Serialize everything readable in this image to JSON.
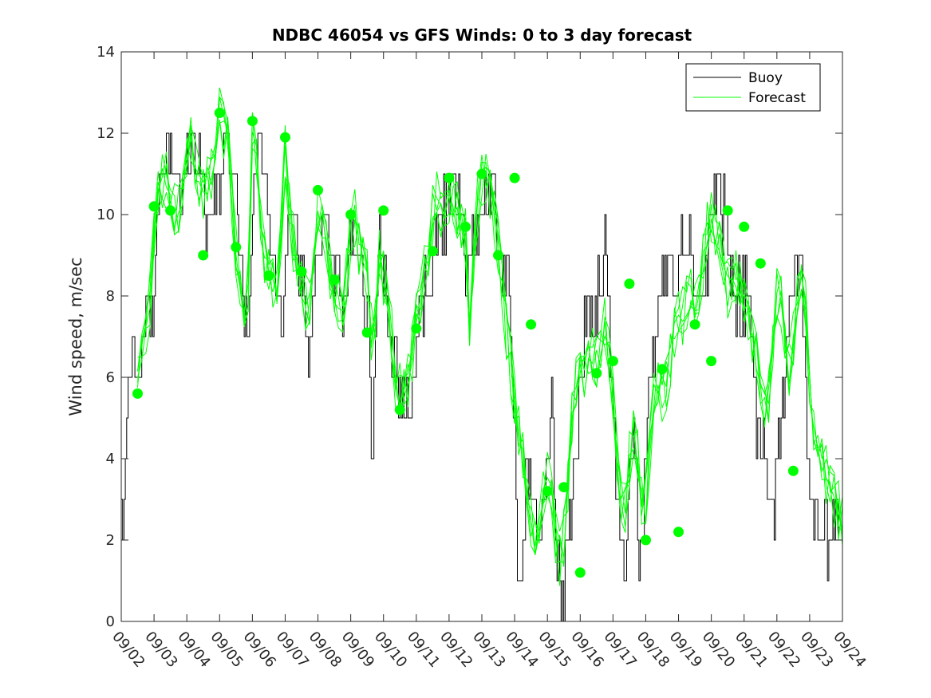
{
  "chart_data": {
    "type": "line",
    "title": "NDBC 46054 vs GFS Winds: 0 to 3 day forecast",
    "xlabel": "",
    "ylabel": "Wind speed, m/sec",
    "xlim": [
      0,
      22
    ],
    "ylim": [
      0,
      14
    ],
    "yticks": [
      0,
      2,
      4,
      6,
      8,
      10,
      12,
      14
    ],
    "xtick_labels": [
      "09/02",
      "09/03",
      "09/04",
      "09/05",
      "09/06",
      "09/07",
      "09/08",
      "09/09",
      "09/10",
      "09/11",
      "09/12",
      "09/13",
      "09/14",
      "09/15",
      "09/16",
      "09/17",
      "09/18",
      "09/19",
      "09/20",
      "09/21",
      "09/22",
      "09/23",
      "09/24"
    ],
    "legend": {
      "position": "top-right",
      "entries": [
        "Buoy",
        "Forecast"
      ]
    },
    "colors": {
      "buoy": "#000000",
      "forecast": "#00ff00",
      "analysis_marker": "#00ff00"
    },
    "buoy_anchors": [
      [
        0.0,
        3.0
      ],
      [
        0.05,
        2.0
      ],
      [
        0.12,
        4.0
      ],
      [
        0.2,
        6.0
      ],
      [
        0.3,
        7.0
      ],
      [
        0.45,
        6.0
      ],
      [
        0.55,
        5.5
      ],
      [
        0.7,
        7.0
      ],
      [
        0.85,
        8.0
      ],
      [
        1.0,
        8.0
      ],
      [
        1.1,
        10.0
      ],
      [
        1.25,
        11.0
      ],
      [
        1.4,
        12.0
      ],
      [
        1.55,
        11.0
      ],
      [
        1.7,
        11.0
      ],
      [
        1.85,
        10.5
      ],
      [
        2.0,
        11.0
      ],
      [
        2.2,
        11.5
      ],
      [
        2.4,
        11.0
      ],
      [
        2.55,
        10.0
      ],
      [
        2.7,
        9.0
      ],
      [
        2.85,
        10.0
      ],
      [
        3.0,
        11.0
      ],
      [
        3.15,
        12.5
      ],
      [
        3.3,
        12.0
      ],
      [
        3.45,
        11.0
      ],
      [
        3.6,
        9.0
      ],
      [
        3.75,
        8.0
      ],
      [
        3.85,
        6.5
      ],
      [
        3.95,
        8.5
      ],
      [
        4.05,
        11.0
      ],
      [
        4.15,
        12.0
      ],
      [
        4.3,
        11.5
      ],
      [
        4.45,
        10.0
      ],
      [
        4.6,
        9.0
      ],
      [
        4.75,
        8.0
      ],
      [
        4.9,
        7.0
      ],
      [
        5.05,
        9.0
      ],
      [
        5.2,
        10.0
      ],
      [
        5.4,
        9.0
      ],
      [
        5.55,
        8.5
      ],
      [
        5.7,
        6.5
      ],
      [
        5.8,
        7.5
      ],
      [
        5.95,
        9.0
      ],
      [
        6.1,
        10.0
      ],
      [
        6.3,
        9.5
      ],
      [
        6.5,
        9.0
      ],
      [
        6.65,
        8.5
      ],
      [
        6.8,
        7.5
      ],
      [
        6.95,
        9.0
      ],
      [
        7.1,
        10.0
      ],
      [
        7.25,
        9.0
      ],
      [
        7.4,
        8.0
      ],
      [
        7.55,
        7.0
      ],
      [
        7.65,
        4.0
      ],
      [
        7.75,
        8.0
      ],
      [
        7.9,
        9.0
      ],
      [
        8.05,
        8.0
      ],
      [
        8.2,
        7.0
      ],
      [
        8.35,
        6.0
      ],
      [
        8.5,
        5.5
      ],
      [
        8.65,
        5.0
      ],
      [
        8.8,
        5.5
      ],
      [
        8.95,
        6.5
      ],
      [
        9.1,
        7.5
      ],
      [
        9.25,
        8.0
      ],
      [
        9.4,
        8.5
      ],
      [
        9.55,
        9.0
      ],
      [
        9.7,
        9.5
      ],
      [
        9.85,
        10.0
      ],
      [
        10.0,
        10.5
      ],
      [
        10.15,
        11.0
      ],
      [
        10.3,
        10.0
      ],
      [
        10.45,
        9.0
      ],
      [
        10.6,
        8.5
      ],
      [
        10.75,
        9.5
      ],
      [
        10.9,
        10.0
      ],
      [
        11.05,
        10.5
      ],
      [
        11.2,
        10.0
      ],
      [
        11.35,
        10.5
      ],
      [
        11.5,
        9.0
      ],
      [
        11.65,
        8.0
      ],
      [
        11.8,
        9.0
      ],
      [
        11.9,
        6.0
      ],
      [
        12.0,
        5.0
      ],
      [
        12.05,
        2.0
      ],
      [
        12.15,
        1.5
      ],
      [
        12.3,
        2.5
      ],
      [
        12.45,
        4.0
      ],
      [
        12.55,
        3.0
      ],
      [
        12.7,
        2.0
      ],
      [
        12.85,
        2.5
      ],
      [
        13.0,
        4.0
      ],
      [
        13.1,
        5.0
      ],
      [
        13.2,
        4.0
      ],
      [
        13.3,
        1.5
      ],
      [
        13.4,
        0.2
      ],
      [
        13.5,
        1.0
      ],
      [
        13.6,
        2.0
      ],
      [
        13.75,
        3.0
      ],
      [
        13.9,
        5.0
      ],
      [
        14.05,
        7.0
      ],
      [
        14.2,
        7.5
      ],
      [
        14.35,
        7.0
      ],
      [
        14.5,
        8.0
      ],
      [
        14.65,
        8.5
      ],
      [
        14.75,
        9.0
      ],
      [
        14.85,
        8.0
      ],
      [
        15.0,
        5.0
      ],
      [
        15.1,
        3.0
      ],
      [
        15.2,
        2.0
      ],
      [
        15.3,
        1.5
      ],
      [
        15.4,
        2.5
      ],
      [
        15.5,
        3.5
      ],
      [
        15.6,
        5.0
      ],
      [
        15.7,
        4.0
      ],
      [
        15.8,
        1.5
      ],
      [
        15.9,
        2.0
      ],
      [
        16.0,
        4.0
      ],
      [
        16.15,
        6.0
      ],
      [
        16.3,
        7.5
      ],
      [
        16.45,
        8.0
      ],
      [
        16.6,
        9.0
      ],
      [
        16.75,
        8.5
      ],
      [
        16.9,
        8.0
      ],
      [
        17.0,
        9.0
      ],
      [
        17.15,
        9.5
      ],
      [
        17.3,
        9.0
      ],
      [
        17.45,
        8.5
      ],
      [
        17.6,
        8.0
      ],
      [
        17.75,
        8.5
      ],
      [
        17.9,
        9.0
      ],
      [
        18.05,
        10.0
      ],
      [
        18.2,
        10.5
      ],
      [
        18.35,
        10.0
      ],
      [
        18.5,
        9.0
      ],
      [
        18.65,
        8.5
      ],
      [
        18.8,
        8.0
      ],
      [
        18.95,
        8.0
      ],
      [
        19.1,
        8.5
      ],
      [
        19.2,
        7.0
      ],
      [
        19.3,
        5.5
      ],
      [
        19.45,
        4.5
      ],
      [
        19.6,
        4.0
      ],
      [
        19.75,
        3.0
      ],
      [
        19.9,
        2.5
      ],
      [
        20.0,
        3.5
      ],
      [
        20.15,
        5.5
      ],
      [
        20.3,
        7.0
      ],
      [
        20.45,
        8.0
      ],
      [
        20.6,
        9.0
      ],
      [
        20.75,
        8.5
      ],
      [
        20.85,
        6.0
      ],
      [
        21.0,
        3.5
      ],
      [
        21.15,
        2.5
      ],
      [
        21.3,
        2.0
      ],
      [
        21.5,
        2.0
      ],
      [
        21.7,
        2.5
      ],
      [
        21.85,
        2.0
      ],
      [
        22.0,
        2.0
      ]
    ],
    "forecast_anchors": [
      [
        0.5,
        6.0
      ],
      [
        0.7,
        7.0
      ],
      [
        0.9,
        8.0
      ],
      [
        1.0,
        9.5
      ],
      [
        1.1,
        10.5
      ],
      [
        1.3,
        11.0
      ],
      [
        1.5,
        10.5
      ],
      [
        1.7,
        10.0
      ],
      [
        1.9,
        11.0
      ],
      [
        2.1,
        12.0
      ],
      [
        2.3,
        11.0
      ],
      [
        2.5,
        10.5
      ],
      [
        2.7,
        11.0
      ],
      [
        2.9,
        11.5
      ],
      [
        3.0,
        12.5
      ],
      [
        3.15,
        12.0
      ],
      [
        3.3,
        11.5
      ],
      [
        3.45,
        9.5
      ],
      [
        3.6,
        8.5
      ],
      [
        3.75,
        7.5
      ],
      [
        3.9,
        8.5
      ],
      [
        4.0,
        12.0
      ],
      [
        4.15,
        11.5
      ],
      [
        4.3,
        9.0
      ],
      [
        4.5,
        8.5
      ],
      [
        4.7,
        8.0
      ],
      [
        4.85,
        9.0
      ],
      [
        5.0,
        11.5
      ],
      [
        5.15,
        10.0
      ],
      [
        5.3,
        9.0
      ],
      [
        5.5,
        8.5
      ],
      [
        5.7,
        7.5
      ],
      [
        5.85,
        8.5
      ],
      [
        6.0,
        10.0
      ],
      [
        6.2,
        9.5
      ],
      [
        6.4,
        8.5
      ],
      [
        6.6,
        8.0
      ],
      [
        6.8,
        7.5
      ],
      [
        6.95,
        9.5
      ],
      [
        7.1,
        10.0
      ],
      [
        7.3,
        9.0
      ],
      [
        7.5,
        8.5
      ],
      [
        7.6,
        7.0
      ],
      [
        7.75,
        7.5
      ],
      [
        7.9,
        9.5
      ],
      [
        8.05,
        8.0
      ],
      [
        8.25,
        7.0
      ],
      [
        8.4,
        5.5
      ],
      [
        8.6,
        6.0
      ],
      [
        8.8,
        6.0
      ],
      [
        9.0,
        7.5
      ],
      [
        9.15,
        8.0
      ],
      [
        9.35,
        9.0
      ],
      [
        9.5,
        10.0
      ],
      [
        9.65,
        10.5
      ],
      [
        9.8,
        10.0
      ],
      [
        9.95,
        10.0
      ],
      [
        10.1,
        10.5
      ],
      [
        10.3,
        10.0
      ],
      [
        10.5,
        9.5
      ],
      [
        10.65,
        7.0
      ],
      [
        10.75,
        9.0
      ],
      [
        10.9,
        10.5
      ],
      [
        11.05,
        11.0
      ],
      [
        11.2,
        10.5
      ],
      [
        11.4,
        10.0
      ],
      [
        11.55,
        9.0
      ],
      [
        11.7,
        7.5
      ],
      [
        11.85,
        6.5
      ],
      [
        12.0,
        5.5
      ],
      [
        12.15,
        4.5
      ],
      [
        12.35,
        3.5
      ],
      [
        12.5,
        2.5
      ],
      [
        12.7,
        2.0
      ],
      [
        12.85,
        3.0
      ],
      [
        13.0,
        3.5
      ],
      [
        13.15,
        3.0
      ],
      [
        13.3,
        1.5
      ],
      [
        13.45,
        1.5
      ],
      [
        13.6,
        3.0
      ],
      [
        13.75,
        5.0
      ],
      [
        13.9,
        6.0
      ],
      [
        14.05,
        6.5
      ],
      [
        14.2,
        6.0
      ],
      [
        14.35,
        6.5
      ],
      [
        14.5,
        6.5
      ],
      [
        14.65,
        7.0
      ],
      [
        14.8,
        7.5
      ],
      [
        14.95,
        6.0
      ],
      [
        15.1,
        4.5
      ],
      [
        15.2,
        3.0
      ],
      [
        15.35,
        2.5
      ],
      [
        15.5,
        4.0
      ],
      [
        15.65,
        5.0
      ],
      [
        15.8,
        3.5
      ],
      [
        15.95,
        2.5
      ],
      [
        16.1,
        4.0
      ],
      [
        16.25,
        5.5
      ],
      [
        16.4,
        6.0
      ],
      [
        16.55,
        5.5
      ],
      [
        16.7,
        6.0
      ],
      [
        16.85,
        7.0
      ],
      [
        17.0,
        7.5
      ],
      [
        17.15,
        7.5
      ],
      [
        17.35,
        8.0
      ],
      [
        17.55,
        7.5
      ],
      [
        17.7,
        8.5
      ],
      [
        17.85,
        9.5
      ],
      [
        18.0,
        10.0
      ],
      [
        18.15,
        9.5
      ],
      [
        18.3,
        9.5
      ],
      [
        18.45,
        8.0
      ],
      [
        18.6,
        8.5
      ],
      [
        18.8,
        8.5
      ],
      [
        18.95,
        8.0
      ],
      [
        19.1,
        7.5
      ],
      [
        19.25,
        7.0
      ],
      [
        19.4,
        6.5
      ],
      [
        19.55,
        5.5
      ],
      [
        19.7,
        5.0
      ],
      [
        19.85,
        6.5
      ],
      [
        19.95,
        8.0
      ],
      [
        20.1,
        8.0
      ],
      [
        20.25,
        7.0
      ],
      [
        20.4,
        6.0
      ],
      [
        20.55,
        7.5
      ],
      [
        20.7,
        9.0
      ],
      [
        20.85,
        8.0
      ],
      [
        21.0,
        6.0
      ],
      [
        21.15,
        4.5
      ],
      [
        21.35,
        4.0
      ],
      [
        21.55,
        3.5
      ],
      [
        21.75,
        3.0
      ],
      [
        22.0,
        2.5
      ]
    ],
    "forecast_series_count": 6,
    "analysis_points": [
      [
        0.5,
        5.6
      ],
      [
        1.0,
        10.2
      ],
      [
        1.5,
        10.1
      ],
      [
        2.5,
        9.0
      ],
      [
        3.0,
        12.5
      ],
      [
        3.5,
        9.2
      ],
      [
        4.0,
        12.3
      ],
      [
        4.5,
        8.5
      ],
      [
        5.0,
        11.9
      ],
      [
        5.5,
        8.6
      ],
      [
        6.0,
        10.6
      ],
      [
        6.5,
        8.4
      ],
      [
        7.0,
        10.0
      ],
      [
        7.5,
        7.1
      ],
      [
        8.0,
        10.1
      ],
      [
        8.5,
        5.2
      ],
      [
        9.0,
        7.2
      ],
      [
        9.5,
        9.1
      ],
      [
        10.0,
        10.9
      ],
      [
        10.5,
        9.7
      ],
      [
        11.0,
        11.0
      ],
      [
        11.5,
        9.0
      ],
      [
        12.0,
        10.9
      ],
      [
        12.5,
        7.3
      ],
      [
        13.0,
        3.2
      ],
      [
        13.5,
        3.3
      ],
      [
        14.0,
        1.2
      ],
      [
        14.5,
        6.1
      ],
      [
        15.0,
        6.4
      ],
      [
        15.5,
        8.3
      ],
      [
        16.0,
        2.0
      ],
      [
        16.5,
        6.2
      ],
      [
        17.0,
        2.2
      ],
      [
        17.5,
        7.3
      ],
      [
        18.0,
        6.4
      ],
      [
        18.5,
        10.1
      ],
      [
        19.0,
        9.7
      ],
      [
        19.5,
        8.8
      ],
      [
        20.5,
        3.7
      ]
    ]
  }
}
